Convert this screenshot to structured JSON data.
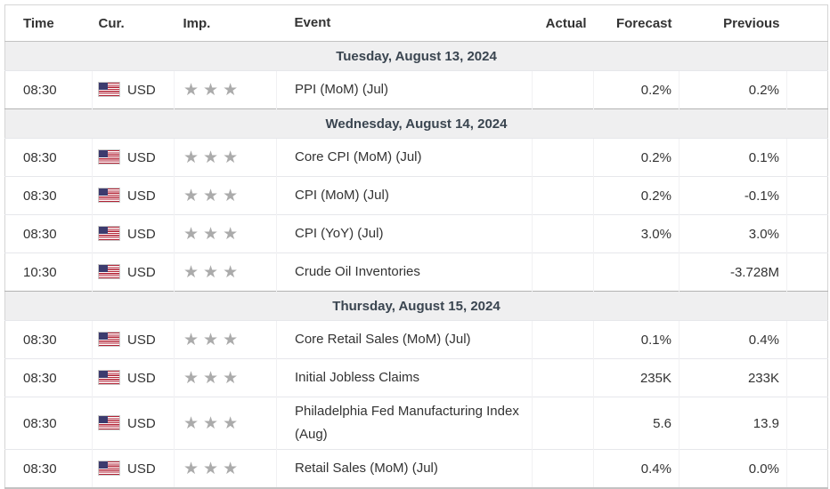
{
  "table": {
    "columns": [
      "Time",
      "Cur.",
      "Imp.",
      "Event",
      "Actual",
      "Forecast",
      "Previous"
    ],
    "days": [
      {
        "date_label": "Tuesday, August 13, 2024",
        "events": [
          {
            "time": "08:30",
            "currency": "USD",
            "flag": "us-flag",
            "importance": 3,
            "event": "PPI (MoM) (Jul)",
            "actual": "",
            "forecast": "0.2%",
            "previous": "0.2%"
          }
        ]
      },
      {
        "date_label": "Wednesday, August 14, 2024",
        "events": [
          {
            "time": "08:30",
            "currency": "USD",
            "flag": "us-flag",
            "importance": 3,
            "event": "Core CPI (MoM) (Jul)",
            "actual": "",
            "forecast": "0.2%",
            "previous": "0.1%"
          },
          {
            "time": "08:30",
            "currency": "USD",
            "flag": "us-flag",
            "importance": 3,
            "event": "CPI (MoM) (Jul)",
            "actual": "",
            "forecast": "0.2%",
            "previous": "-0.1%"
          },
          {
            "time": "08:30",
            "currency": "USD",
            "flag": "us-flag",
            "importance": 3,
            "event": "CPI (YoY) (Jul)",
            "actual": "",
            "forecast": "3.0%",
            "previous": "3.0%"
          },
          {
            "time": "10:30",
            "currency": "USD",
            "flag": "us-flag",
            "importance": 3,
            "event": "Crude Oil Inventories",
            "actual": "",
            "forecast": "",
            "previous": "-3.728M"
          }
        ]
      },
      {
        "date_label": "Thursday, August 15, 2024",
        "events": [
          {
            "time": "08:30",
            "currency": "USD",
            "flag": "us-flag",
            "importance": 3,
            "event": "Core Retail Sales (MoM) (Jul)",
            "actual": "",
            "forecast": "0.1%",
            "previous": "0.4%"
          },
          {
            "time": "08:30",
            "currency": "USD",
            "flag": "us-flag",
            "importance": 3,
            "event": "Initial Jobless Claims",
            "actual": "",
            "forecast": "235K",
            "previous": "233K"
          },
          {
            "time": "08:30",
            "currency": "USD",
            "flag": "us-flag",
            "importance": 3,
            "event": "Philadelphia Fed Manufacturing Index (Aug)",
            "actual": "",
            "forecast": "5.6",
            "previous": "13.9"
          },
          {
            "time": "08:30",
            "currency": "USD",
            "flag": "us-flag",
            "importance": 3,
            "event": "Retail Sales (MoM) (Jul)",
            "actual": "",
            "forecast": "0.4%",
            "previous": "0.0%"
          }
        ]
      }
    ]
  },
  "icons": {
    "importance_icon": "star",
    "currency_flag_icon": "us-flag"
  },
  "colors": {
    "date_row_bg": "#efeff0",
    "date_row_text": "#3a4550",
    "star_gray": "#ababab",
    "body_text": "#333333",
    "flag_red": "#b22234",
    "flag_blue": "#3c3b6e",
    "row_border": "#e6e7eb",
    "strong_border": "#b3b3b3"
  }
}
